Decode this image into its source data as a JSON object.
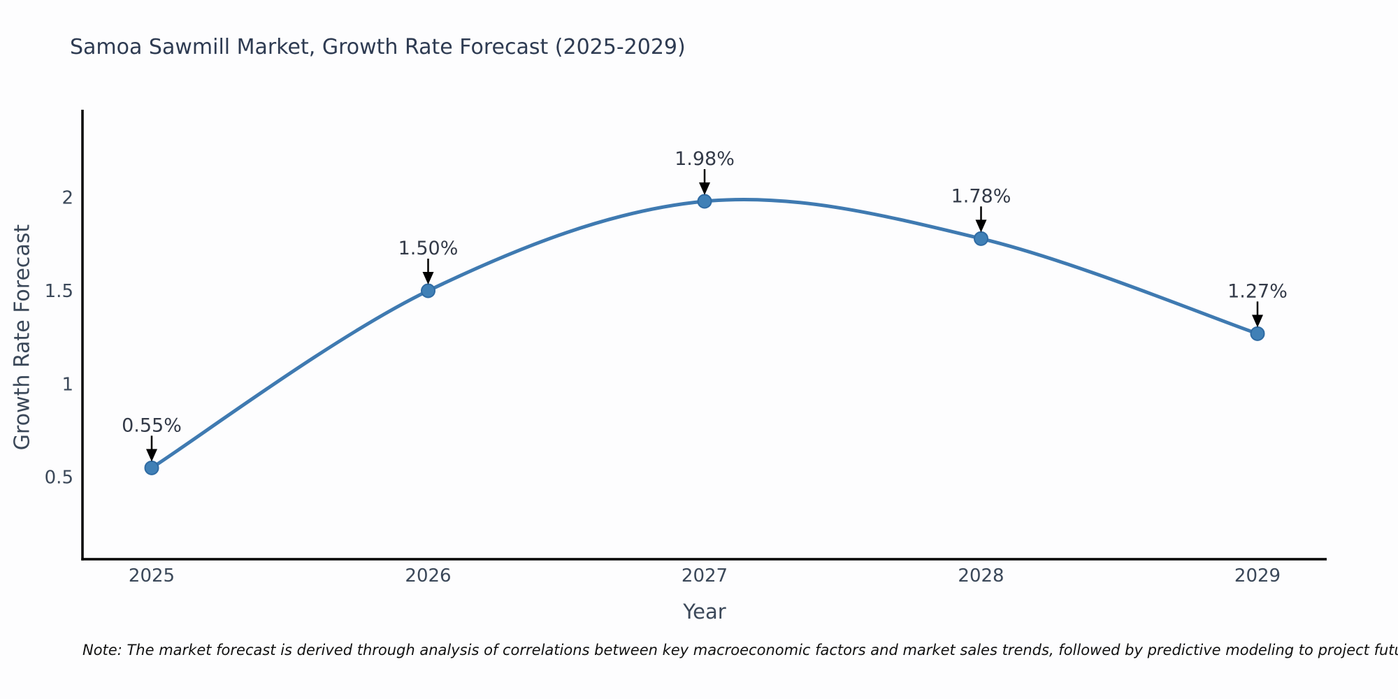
{
  "note": "Note: The market forecast is derived through analysis of correlations between key macroeconomic factors and market sales trends, followed by predictive modeling to project future sales",
  "chart_data": {
    "type": "line",
    "title": "Samoa Sawmill Market, Growth Rate Forecast (2025-2029)",
    "xlabel": "Year",
    "ylabel": "Growth Rate Forecast",
    "x": [
      2025,
      2026,
      2027,
      2028,
      2029
    ],
    "xtick_labels": [
      "2025",
      "2026",
      "2027",
      "2028",
      "2029"
    ],
    "series": [
      {
        "name": "Growth Rate Forecast",
        "values": [
          0.55,
          1.5,
          1.98,
          1.78,
          1.27
        ]
      }
    ],
    "point_labels": [
      "0.55%",
      "1.50%",
      "1.98%",
      "1.78%",
      "1.27%"
    ],
    "yticks": [
      0.5,
      1,
      1.5,
      2
    ],
    "ytick_labels": [
      "0.5",
      "1",
      "1.5",
      "2"
    ],
    "ylim": [
      0.06,
      2.46
    ],
    "grid": false,
    "legend_position": "none",
    "colors": {
      "line": "#3f7ab1",
      "marker_fill": "#4080b6",
      "marker_edge": "#2f6ba3",
      "annotation_text": "#333a48",
      "arrow": "#000000",
      "axis_spine": "#000000",
      "tick_label": "#3b4859",
      "title": "#2e3b52"
    }
  }
}
